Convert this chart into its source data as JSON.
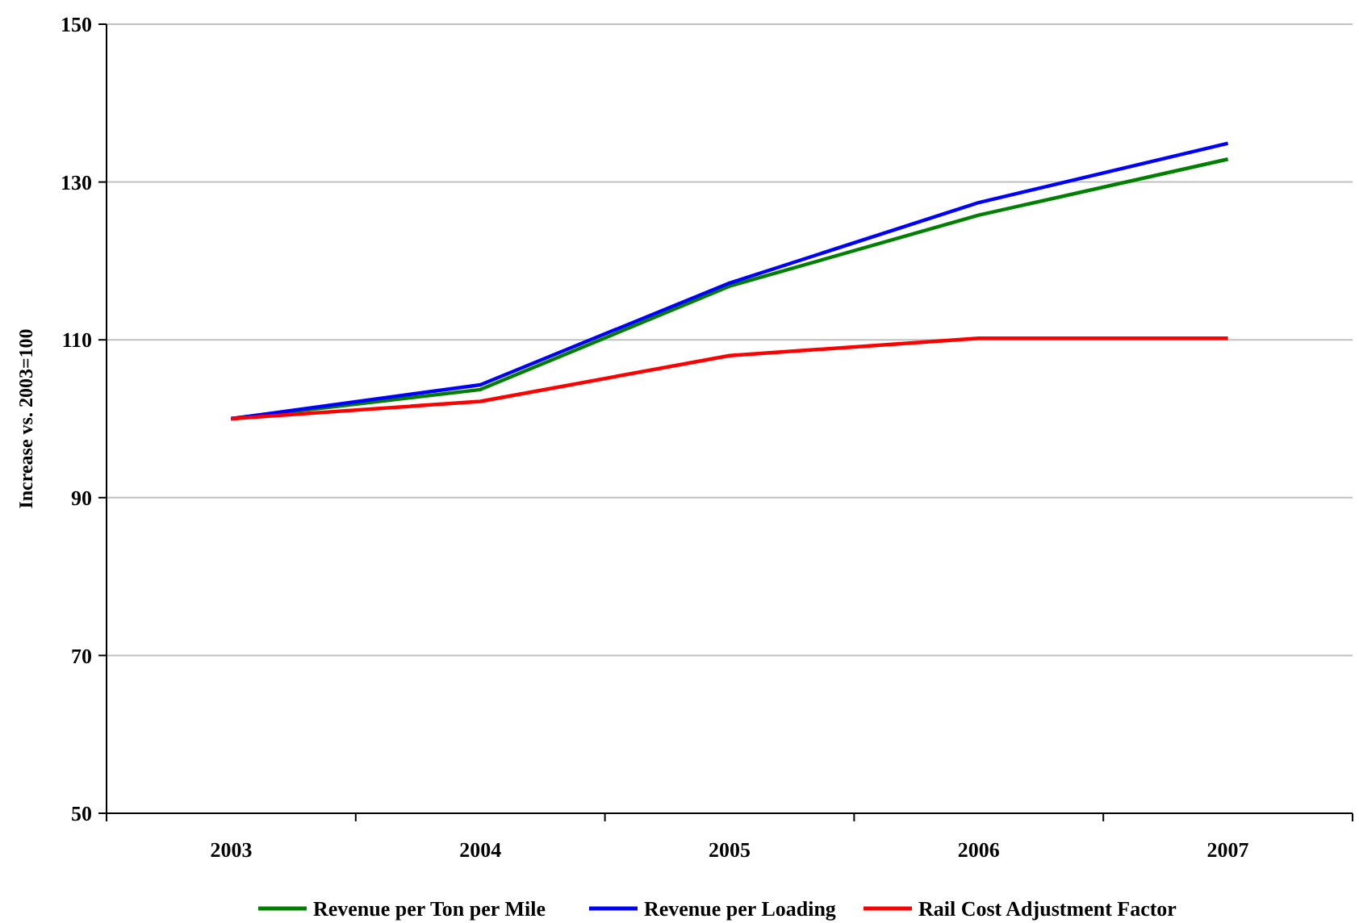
{
  "chart_data": {
    "type": "line",
    "ylabel": "Increase vs. 2003=100",
    "categories": [
      "2003",
      "2004",
      "2005",
      "2006",
      "2007"
    ],
    "series": [
      {
        "name": "Revenue per Ton per Mile",
        "color": "#008000",
        "values": [
          100,
          103.7,
          116.8,
          125.8,
          132.9
        ]
      },
      {
        "name": "Revenue per Loading",
        "color": "#0000ff",
        "values": [
          100,
          104.3,
          117.2,
          127.4,
          134.9
        ]
      },
      {
        "name": "Rail Cost Adjustment Factor",
        "color": "#ff0000",
        "values": [
          100,
          102.2,
          108,
          110.2,
          110.2
        ]
      }
    ],
    "ylim": [
      50,
      150
    ],
    "yticks": [
      50,
      70,
      90,
      110,
      130,
      150
    ],
    "grid": "y",
    "legend": "bottom",
    "marker": "none",
    "line_style": "solid"
  }
}
